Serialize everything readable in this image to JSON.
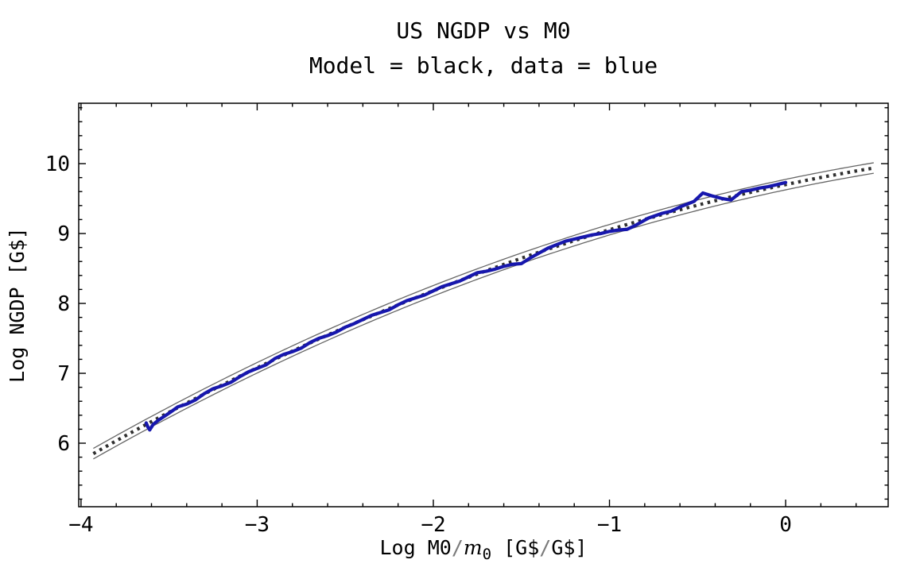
{
  "title": {
    "line1": "US NGDP vs M0",
    "line2": "Model = black, data = blue"
  },
  "colors": {
    "data_blue": "#1717ad",
    "band_edge": "#666666",
    "model_dots": "#2f2f2f",
    "frame": "#000000",
    "text": "#000000",
    "slash_gray": "#7a7a7a",
    "background": "#ffffff"
  },
  "axes": {
    "x": {
      "label_parts": [
        {
          "t": "Log M0",
          "style": "plain"
        },
        {
          "t": "/",
          "style": "slash"
        },
        {
          "t": "m",
          "style": "italic"
        },
        {
          "t": "0",
          "style": "sub"
        },
        {
          "t": " [G$",
          "style": "plain"
        },
        {
          "t": "/",
          "style": "slash"
        },
        {
          "t": "G$]",
          "style": "plain"
        }
      ],
      "tick_values": [
        -4,
        -3,
        -2,
        -1,
        0
      ],
      "tick_labels": [
        "−4",
        "−3",
        "−2",
        "−1",
        "0"
      ],
      "minor_step": 0.2
    },
    "y": {
      "label": "Log NGDP [G$]",
      "tick_values": [
        6,
        7,
        8,
        9,
        10
      ],
      "tick_labels": [
        "6",
        "7",
        "8",
        "9",
        "10"
      ],
      "minor_step": 0.2
    }
  },
  "chart_data": {
    "type": "line",
    "title": "US NGDP vs M0",
    "subtitle": "Model = black, data = blue",
    "xlabel": "Log M0/m0 [G$/G$]",
    "ylabel": "Log NGDP [G$]",
    "xlim": [
      -4.013,
      0.582
    ],
    "ylim": [
      5.091,
      10.864
    ],
    "grid": false,
    "legend": "none",
    "x_major_ticks": [
      -4,
      -3,
      -2,
      -1,
      0
    ],
    "y_major_ticks": [
      6,
      7,
      8,
      9,
      10
    ],
    "minor_tick_step": 0.2,
    "series": [
      {
        "name": "model",
        "color": "black",
        "style": "dotted-center-with-band",
        "quadratic": {
          "a": 9.7,
          "b": 0.5316,
          "c": -0.114
        },
        "x_start": -3.93,
        "x_end": 0.5,
        "band_halfwidth": 0.075
      },
      {
        "name": "data",
        "color": "blue",
        "style": "solid",
        "points": [
          [
            -3.63,
            6.29
          ],
          [
            -3.62,
            6.23
          ],
          [
            -3.61,
            6.19
          ],
          [
            -3.59,
            6.27
          ],
          [
            -3.56,
            6.33
          ],
          [
            -3.5,
            6.43
          ],
          [
            -3.45,
            6.52
          ],
          [
            -3.4,
            6.56
          ],
          [
            -3.35,
            6.62
          ],
          [
            -3.3,
            6.71
          ],
          [
            -3.25,
            6.78
          ],
          [
            -3.2,
            6.82
          ],
          [
            -3.15,
            6.87
          ],
          [
            -3.1,
            6.95
          ],
          [
            -3.05,
            7.02
          ],
          [
            -3.0,
            7.07
          ],
          [
            -2.95,
            7.12
          ],
          [
            -2.9,
            7.21
          ],
          [
            -2.85,
            7.27
          ],
          [
            -2.8,
            7.31
          ],
          [
            -2.75,
            7.36
          ],
          [
            -2.7,
            7.44
          ],
          [
            -2.65,
            7.5
          ],
          [
            -2.6,
            7.54
          ],
          [
            -2.55,
            7.59
          ],
          [
            -2.5,
            7.66
          ],
          [
            -2.45,
            7.71
          ],
          [
            -2.4,
            7.77
          ],
          [
            -2.35,
            7.83
          ],
          [
            -2.3,
            7.87
          ],
          [
            -2.25,
            7.91
          ],
          [
            -2.2,
            7.98
          ],
          [
            -2.15,
            8.04
          ],
          [
            -2.1,
            8.08
          ],
          [
            -2.05,
            8.12
          ],
          [
            -2.0,
            8.18
          ],
          [
            -1.95,
            8.24
          ],
          [
            -1.9,
            8.28
          ],
          [
            -1.85,
            8.32
          ],
          [
            -1.8,
            8.38
          ],
          [
            -1.75,
            8.44
          ],
          [
            -1.7,
            8.46
          ],
          [
            -1.65,
            8.49
          ],
          [
            -1.6,
            8.53
          ],
          [
            -1.55,
            8.56
          ],
          [
            -1.5,
            8.57
          ],
          [
            -1.45,
            8.65
          ],
          [
            -1.4,
            8.72
          ],
          [
            -1.35,
            8.79
          ],
          [
            -1.3,
            8.84
          ],
          [
            -1.25,
            8.89
          ],
          [
            -1.2,
            8.92
          ],
          [
            -1.15,
            8.95
          ],
          [
            -1.1,
            8.98
          ],
          [
            -1.05,
            9.0
          ],
          [
            -1.0,
            9.03
          ],
          [
            -0.95,
            9.05
          ],
          [
            -0.9,
            9.06
          ],
          [
            -0.85,
            9.12
          ],
          [
            -0.78,
            9.22
          ],
          [
            -0.7,
            9.29
          ],
          [
            -0.65,
            9.32
          ],
          [
            -0.6,
            9.38
          ],
          [
            -0.52,
            9.46
          ],
          [
            -0.47,
            9.58
          ],
          [
            -0.42,
            9.54
          ],
          [
            -0.36,
            9.5
          ],
          [
            -0.31,
            9.48
          ],
          [
            -0.25,
            9.6
          ],
          [
            -0.2,
            9.62
          ],
          [
            -0.15,
            9.65
          ],
          [
            -0.1,
            9.67
          ],
          [
            -0.05,
            9.7
          ],
          [
            0.0,
            9.73
          ]
        ]
      }
    ]
  }
}
